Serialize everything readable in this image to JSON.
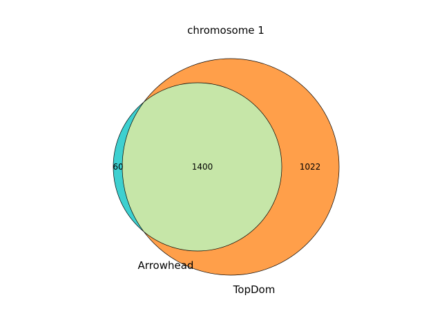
{
  "diagram": {
    "type": "venn2",
    "title": "chromosome 1",
    "sets": [
      {
        "name": "Arrowhead",
        "color": "#3dd0d0"
      },
      {
        "name": "TopDom",
        "color": "#ff9f4a"
      }
    ],
    "regions": {
      "only_arrowhead": "60",
      "intersection": "1400",
      "only_topdom": "1022"
    },
    "intersection_color": "#c6e6a8",
    "outline_color": "#000000"
  }
}
